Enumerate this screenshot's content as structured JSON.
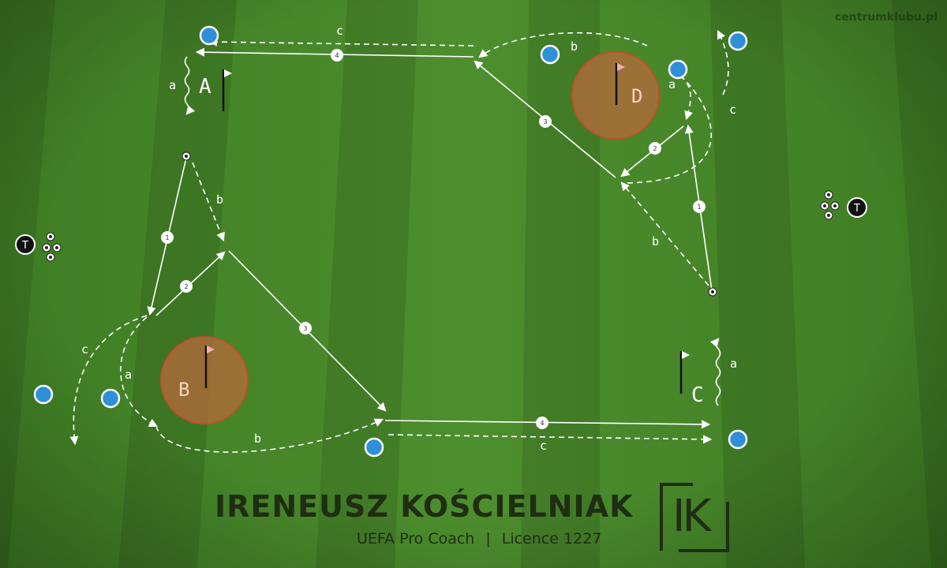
{
  "watermark": "centrumklubu.pl",
  "zones": {
    "A": "A",
    "B": "B",
    "C": "C",
    "D": "D"
  },
  "route_labels": {
    "a": "a",
    "b": "b",
    "c": "c"
  },
  "pass_numbers": [
    "1",
    "2",
    "3",
    "4"
  ],
  "trainer_label": "T",
  "footer": {
    "name": "IRENEUSZ KOŚCIELNIAK",
    "title": "UEFA Pro Coach",
    "separator": "|",
    "licence": "Licence 1227",
    "logo": "IK"
  },
  "colors": {
    "grass_dark": "#3a7620",
    "grass_light": "#4a8a2c",
    "player": "#2f8fd8",
    "zone": "#b86a3c",
    "line": "#ffffff",
    "text_dark": "#1f2e12"
  }
}
